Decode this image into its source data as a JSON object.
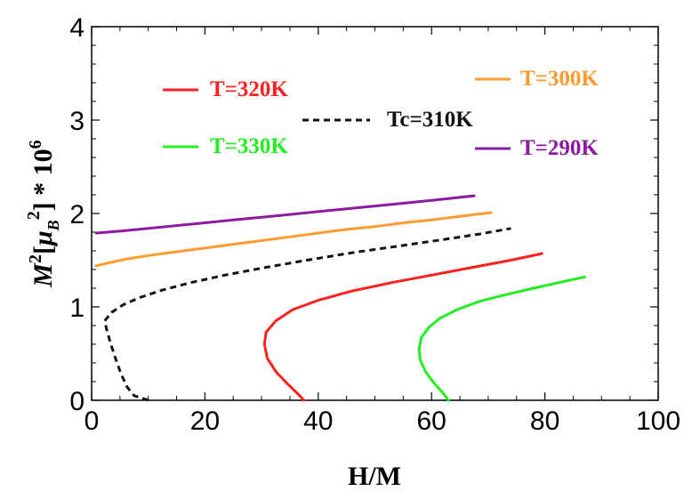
{
  "chart_data": {
    "type": "line",
    "xlabel": "H/M",
    "ylabel": "M²[μB²] * 10⁶",
    "ylabel_parts": {
      "m": "M",
      "m_sup": "2",
      "open": "[",
      "mu": "μ",
      "mu_sub": "B",
      "mu_sup": "2",
      "close": "] * 10",
      "exp": "6"
    },
    "xlim": [
      0,
      100
    ],
    "ylim": [
      0,
      4
    ],
    "xticks": [
      "0",
      "20",
      "40",
      "60",
      "80",
      "100"
    ],
    "yticks": [
      "0",
      "1",
      "2",
      "3",
      "4"
    ],
    "grid": false,
    "series": [
      {
        "name": "T=320K",
        "color": "#ff2020",
        "dash": false,
        "x": [
          37.5,
          36.2,
          34.5,
          32.6,
          31.0,
          30.5,
          30.8,
          32.5,
          35.5,
          40.0,
          46.0,
          53.0,
          60.0,
          67.0,
          74.0,
          79.5
        ],
        "y": [
          0.0,
          0.08,
          0.18,
          0.3,
          0.45,
          0.6,
          0.73,
          0.85,
          0.97,
          1.07,
          1.17,
          1.26,
          1.34,
          1.42,
          1.5,
          1.57
        ]
      },
      {
        "name": "T=300K",
        "color": "#ff9a2e",
        "dash": false,
        "x": [
          0.8,
          3,
          6,
          10,
          15,
          20,
          25,
          30,
          35,
          40,
          45,
          50,
          55,
          60,
          65,
          70.5
        ],
        "y": [
          1.44,
          1.47,
          1.51,
          1.55,
          1.59,
          1.63,
          1.67,
          1.71,
          1.75,
          1.79,
          1.83,
          1.86,
          1.9,
          1.93,
          1.97,
          2.01
        ]
      },
      {
        "name": "T=330K",
        "color": "#22ee22",
        "dash": false,
        "x": [
          63.0,
          62.0,
          60.5,
          59.0,
          58.0,
          57.8,
          58.2,
          59.5,
          61.5,
          64.5,
          68.5,
          73.0,
          78.0,
          82.5,
          87.0
        ],
        "y": [
          0.0,
          0.08,
          0.18,
          0.3,
          0.43,
          0.55,
          0.67,
          0.78,
          0.88,
          0.97,
          1.06,
          1.13,
          1.2,
          1.26,
          1.32
        ]
      },
      {
        "name": "T=290K",
        "color": "#8c1aa0",
        "dash": false,
        "x": [
          0.8,
          5,
          10,
          15,
          20,
          25,
          30,
          35,
          40,
          45,
          50,
          55,
          60,
          67.5
        ],
        "y": [
          1.79,
          1.81,
          1.84,
          1.87,
          1.9,
          1.93,
          1.96,
          1.99,
          2.02,
          2.05,
          2.08,
          2.11,
          2.14,
          2.19
        ]
      },
      {
        "name": "Tc=310K",
        "color": "#111111",
        "dash": true,
        "x": [
          10.0,
          7.5,
          6.3,
          5.2,
          4.2,
          3.3,
          2.6,
          2.3,
          3.5,
          5.5,
          8.5,
          12.5,
          17.5,
          23.5,
          30.5,
          38.0,
          46.0,
          54.0,
          62.0,
          68.5,
          74.0
        ],
        "y": [
          0.0,
          0.05,
          0.14,
          0.28,
          0.45,
          0.62,
          0.77,
          0.85,
          0.94,
          1.02,
          1.1,
          1.18,
          1.26,
          1.34,
          1.42,
          1.5,
          1.58,
          1.65,
          1.72,
          1.78,
          1.84
        ]
      }
    ],
    "legend": [
      {
        "name": "T=320K",
        "color": "#ff2020",
        "dash": false
      },
      {
        "name": "T=300K",
        "color": "#ff9a2e",
        "dash": false
      },
      {
        "name": "Tc=310K",
        "color": "#111111",
        "dash": true
      },
      {
        "name": "T=330K",
        "color": "#22ee22",
        "dash": false
      },
      {
        "name": "T=290K",
        "color": "#8c1aa0",
        "dash": false
      }
    ]
  }
}
